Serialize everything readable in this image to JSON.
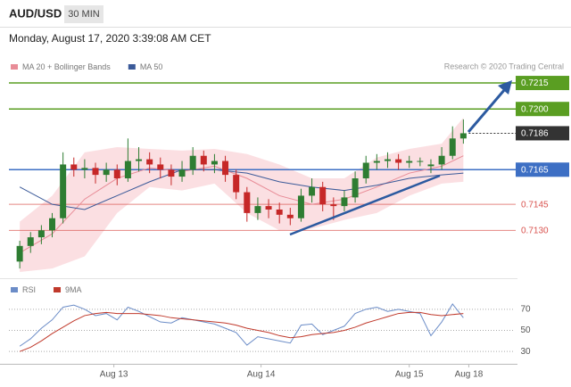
{
  "header": {
    "symbol": "AUD/USD",
    "timeframe": "30 MIN",
    "timestamp": "Monday, August 17, 2020 3:39:08 AM CET",
    "credit": "Research © 2020 Trading Central"
  },
  "chart_data": [
    {
      "type": "candlestick",
      "x": [
        1,
        2,
        3,
        4,
        5,
        6,
        7,
        8,
        9,
        10,
        11,
        12,
        13,
        14,
        15,
        16,
        17,
        18,
        19,
        20,
        21,
        22,
        23,
        24,
        25,
        26,
        27,
        28,
        29,
        30,
        31,
        32,
        33,
        34,
        35,
        36,
        37,
        38,
        39,
        40,
        41,
        42
      ],
      "open": [
        0.7112,
        0.7121,
        0.7126,
        0.713,
        0.7137,
        0.7168,
        0.7165,
        0.7166,
        0.7162,
        0.7165,
        0.716,
        0.717,
        0.7171,
        0.7168,
        0.7165,
        0.7161,
        0.7165,
        0.7173,
        0.7168,
        0.717,
        0.7162,
        0.7152,
        0.714,
        0.7144,
        0.7142,
        0.7139,
        0.7137,
        0.715,
        0.7155,
        0.7145,
        0.7144,
        0.7149,
        0.716,
        0.7169,
        0.717,
        0.7171,
        0.7169,
        0.717,
        0.7167,
        0.7168,
        0.7173,
        0.7183
      ],
      "high": [
        0.7124,
        0.7129,
        0.7133,
        0.714,
        0.7175,
        0.7172,
        0.7171,
        0.7169,
        0.7169,
        0.7168,
        0.7183,
        0.7178,
        0.7175,
        0.7172,
        0.7168,
        0.717,
        0.7178,
        0.7176,
        0.7174,
        0.7173,
        0.7165,
        0.7155,
        0.7149,
        0.7148,
        0.7146,
        0.7143,
        0.7154,
        0.716,
        0.7158,
        0.7149,
        0.7153,
        0.7164,
        0.7173,
        0.7174,
        0.7175,
        0.7174,
        0.7173,
        0.7172,
        0.7171,
        0.7178,
        0.719,
        0.7194
      ],
      "low": [
        0.7108,
        0.7117,
        0.7122,
        0.7126,
        0.7134,
        0.7161,
        0.716,
        0.7157,
        0.7158,
        0.7156,
        0.7158,
        0.7164,
        0.7163,
        0.716,
        0.7156,
        0.7158,
        0.7162,
        0.7164,
        0.7163,
        0.7158,
        0.7148,
        0.7135,
        0.7136,
        0.7137,
        0.7134,
        0.7133,
        0.7135,
        0.7146,
        0.7141,
        0.7136,
        0.7141,
        0.7146,
        0.7157,
        0.7165,
        0.7166,
        0.7165,
        0.7166,
        0.7167,
        0.7163,
        0.7165,
        0.7171,
        0.718
      ],
      "close": [
        0.7121,
        0.7126,
        0.713,
        0.7137,
        0.7168,
        0.7165,
        0.7166,
        0.7162,
        0.7165,
        0.716,
        0.717,
        0.7171,
        0.7168,
        0.7165,
        0.7161,
        0.7165,
        0.7173,
        0.7168,
        0.717,
        0.7162,
        0.7152,
        0.714,
        0.7144,
        0.7142,
        0.7139,
        0.7137,
        0.715,
        0.7155,
        0.7145,
        0.7144,
        0.7149,
        0.716,
        0.7169,
        0.717,
        0.7171,
        0.7169,
        0.717,
        0.717,
        0.7168,
        0.7173,
        0.7183,
        0.7186
      ],
      "up_color": "#2e7d32",
      "down_color": "#c62828",
      "xlim": [
        0,
        47
      ],
      "ylim": [
        0.7106,
        0.7232
      ],
      "series": [
        {
          "name": "MA 20 + Bollinger Bands",
          "color": "#e88c97",
          "band_color": "#f9d4d8",
          "x": [
            1,
            4,
            7,
            10,
            13,
            16,
            19,
            22,
            25,
            28,
            31,
            34,
            37,
            40,
            42
          ],
          "values": [
            0.7117,
            0.7128,
            0.7148,
            0.716,
            0.7166,
            0.7164,
            0.7167,
            0.716,
            0.715,
            0.7145,
            0.7148,
            0.7155,
            0.7163,
            0.7167,
            0.7173
          ],
          "upper": [
            0.7135,
            0.715,
            0.7175,
            0.7178,
            0.7177,
            0.7176,
            0.7177,
            0.7174,
            0.7168,
            0.716,
            0.716,
            0.7172,
            0.7177,
            0.718,
            0.7195
          ],
          "lower": [
            0.7106,
            0.7108,
            0.7115,
            0.714,
            0.7155,
            0.7153,
            0.7157,
            0.714,
            0.713,
            0.7131,
            0.7136,
            0.714,
            0.715,
            0.7157,
            0.7158
          ]
        },
        {
          "name": "MA 50",
          "color": "#3b5a99",
          "x": [
            1,
            4,
            7,
            10,
            13,
            16,
            19,
            22,
            25,
            28,
            31,
            34,
            37,
            40,
            42
          ],
          "values": [
            0.7155,
            0.7145,
            0.7142,
            0.715,
            0.7158,
            0.7165,
            0.7165,
            0.7163,
            0.7158,
            0.7155,
            0.7153,
            0.7156,
            0.716,
            0.7162,
            0.7163
          ]
        }
      ],
      "levels": [
        {
          "value": 0.7215,
          "label": "0.7215",
          "color": "#5a9e22",
          "style": "box",
          "line": "solid"
        },
        {
          "value": 0.72,
          "label": "0.7200",
          "color": "#5a9e22",
          "style": "box",
          "line": "solid"
        },
        {
          "value": 0.7186,
          "label": "0.7186",
          "color": "#333333",
          "style": "box",
          "line": "dotted"
        },
        {
          "value": 0.7165,
          "label": "0.7165",
          "color": "#3d6fc4",
          "style": "box",
          "line": "solid"
        },
        {
          "value": 0.7145,
          "label": "0.7145",
          "color": "#d9534f",
          "style": "text",
          "line": "solid"
        },
        {
          "value": 0.713,
          "label": "0.7130",
          "color": "#d9534f",
          "style": "text",
          "line": "solid"
        }
      ]
    },
    {
      "type": "line",
      "x": [
        1,
        2,
        3,
        4,
        5,
        6,
        7,
        8,
        9,
        10,
        11,
        12,
        13,
        14,
        15,
        16,
        17,
        18,
        19,
        20,
        21,
        22,
        23,
        24,
        25,
        26,
        27,
        28,
        29,
        30,
        31,
        32,
        33,
        34,
        35,
        36,
        37,
        38,
        39,
        40,
        41,
        42
      ],
      "series": [
        {
          "name": "RSI",
          "color": "#6b8cc7",
          "values": [
            35,
            42,
            52,
            60,
            72,
            74,
            70,
            64,
            66,
            60,
            72,
            68,
            63,
            58,
            57,
            62,
            60,
            58,
            56,
            52,
            48,
            36,
            44,
            42,
            40,
            38,
            55,
            56,
            46,
            50,
            54,
            66,
            70,
            72,
            68,
            70,
            68,
            66,
            45,
            58,
            75,
            62
          ]
        },
        {
          "name": "9MA",
          "color": "#c0392b",
          "values": [
            30,
            34,
            40,
            47,
            53,
            59,
            64,
            66,
            67,
            66,
            66,
            66,
            65,
            64,
            62,
            61,
            60,
            59,
            58,
            57,
            55,
            52,
            50,
            48,
            45,
            43,
            44,
            46,
            47,
            48,
            50,
            53,
            57,
            60,
            63,
            66,
            67,
            67,
            65,
            64,
            65,
            66
          ]
        }
      ],
      "xlim": [
        0,
        47
      ],
      "ylim": [
        20,
        91
      ],
      "yticks": [
        30,
        50,
        70
      ],
      "grid": true,
      "xticks": [
        {
          "value": 9.7,
          "label": "Aug 13"
        },
        {
          "value": 23.3,
          "label": "Aug 14"
        },
        {
          "value": 37,
          "label": "Aug 15"
        },
        {
          "value": 42.5,
          "label": "Aug 18"
        }
      ]
    }
  ]
}
